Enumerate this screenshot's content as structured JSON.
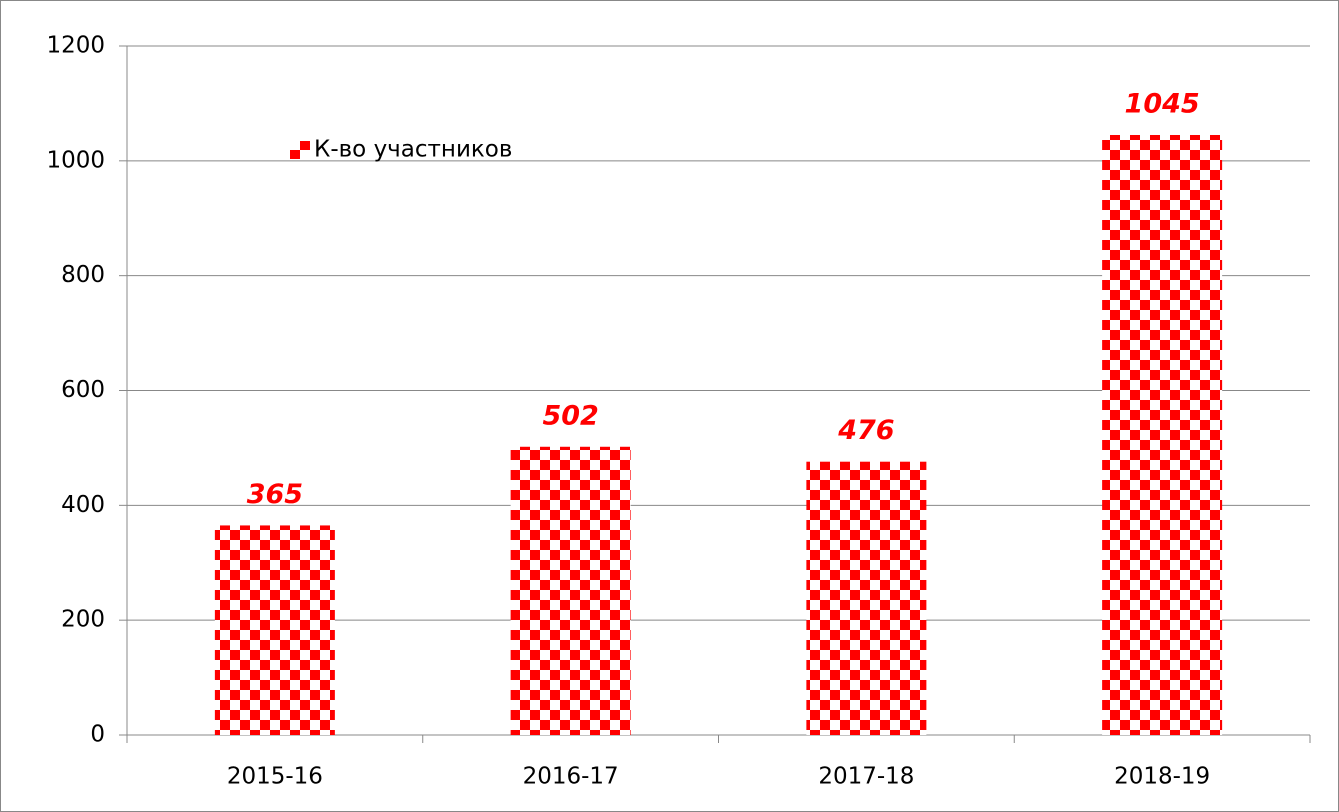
{
  "chart_data": {
    "type": "bar",
    "categories": [
      "2015-16",
      "2016-17",
      "2017-18",
      "2018-19"
    ],
    "series": [
      {
        "name": "К-во участников",
        "color": "#ff0000",
        "values": [
          365,
          502,
          476,
          1045
        ]
      }
    ],
    "pattern": "checkerboard",
    "ylim": [
      0,
      1200
    ],
    "yticks": [
      0,
      200,
      400,
      600,
      800,
      1000,
      1200
    ],
    "grid": true,
    "legend": "upper left"
  }
}
